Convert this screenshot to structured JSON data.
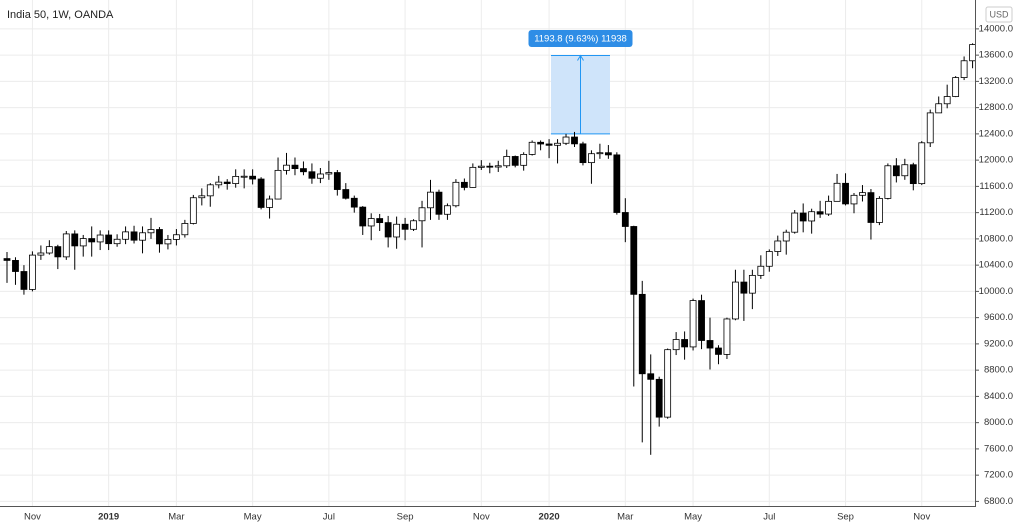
{
  "chart_data": {
    "type": "candlestick",
    "title": "India 50, 1W, OANDA",
    "currency": "USD",
    "categories": [
      null,
      null,
      null,
      "Nov",
      null,
      null,
      null,
      null,
      null,
      null,
      null,
      null,
      "2019",
      null,
      null,
      null,
      null,
      null,
      null,
      null,
      "Mar",
      null,
      null,
      null,
      null,
      null,
      null,
      null,
      null,
      "May",
      null,
      null,
      null,
      null,
      null,
      null,
      null,
      null,
      "Jul",
      null,
      null,
      null,
      null,
      null,
      null,
      null,
      null,
      "Sep",
      null,
      null,
      null,
      null,
      null,
      null,
      null,
      null,
      "Nov",
      null,
      null,
      null,
      null,
      null,
      null,
      null,
      "2020",
      null,
      null,
      null,
      null,
      null,
      null,
      null,
      null,
      "Mar",
      null,
      null,
      null,
      null,
      null,
      null,
      null,
      "May",
      null,
      null,
      null,
      null,
      null,
      null,
      null,
      null,
      "Jul",
      null,
      null,
      null,
      null,
      null,
      null,
      null,
      null,
      "Sep",
      null,
      null,
      null,
      null,
      null,
      null,
      null,
      null,
      "Nov",
      null,
      null,
      null,
      null,
      null,
      null
    ],
    "open": [
      10500,
      10472,
      10303,
      10030,
      10553,
      10585,
      10682,
      10526,
      10876,
      10693,
      10805,
      10754,
      10859,
      10727,
      10794,
      10907,
      10780,
      10893,
      10943,
      10724,
      10792,
      10863,
      11035,
      11427,
      11456,
      11624,
      11665,
      11643,
      11752,
      11755,
      11712,
      11279,
      11407,
      11844,
      11923,
      11871,
      11823,
      11724,
      11789,
      11811,
      11552,
      11419,
      11284,
      10997,
      11110,
      11048,
      10829,
      11023,
      10946,
      11076,
      11274,
      11512,
      11175,
      11305,
      11662,
      11584,
      11890,
      11908,
      11895,
      11914,
      12056,
      11921,
      12087,
      12272,
      12246,
      12226,
      12257,
      12352,
      12248,
      11962,
      12098,
      12113,
      12080,
      11202,
      10989,
      9955,
      8745,
      8660,
      8084,
      9112,
      9267,
      9154,
      9860,
      9252,
      9137,
      9040,
      9580,
      10142,
      9973,
      10244,
      10383,
      10608,
      10768,
      10902,
      11194,
      11073,
      11214,
      11178,
      11372,
      11647,
      11333,
      11464,
      11505,
      11050,
      11417,
      11914,
      11762,
      11930,
      11642,
      12264,
      12720,
      12859,
      12969,
      13258,
      13514
    ],
    "high": [
      10600,
      10520,
      10400,
      10610,
      10700,
      10780,
      10710,
      10920,
      10930,
      10860,
      10990,
      10930,
      10930,
      10870,
      10990,
      11000,
      10990,
      11120,
      10980,
      10860,
      10950,
      11090,
      11470,
      11570,
      11650,
      11760,
      11710,
      11860,
      11860,
      11860,
      11740,
      11460,
      12040,
      12110,
      12040,
      11980,
      11950,
      11880,
      11990,
      11850,
      11650,
      11460,
      11300,
      11190,
      11180,
      11150,
      11140,
      11120,
      11100,
      11380,
      11700,
      11550,
      11340,
      11710,
      11720,
      11950,
      12000,
      11960,
      11990,
      12160,
      12070,
      12120,
      12300,
      12300,
      12320,
      12320,
      12400,
      12430,
      12280,
      12150,
      12250,
      12230,
      12120,
      11420,
      11000,
      10160,
      9040,
      8700,
      9130,
      9380,
      9390,
      9890,
      9950,
      9600,
      9180,
      9600,
      10330,
      10330,
      10330,
      10550,
      10640,
      10850,
      10940,
      11240,
      11340,
      11260,
      11380,
      11460,
      11790,
      11800,
      11500,
      11620,
      11560,
      11450,
      11950,
      12030,
      12020,
      11960,
      12290,
      12770,
      12970,
      13150,
      13280,
      13580,
      13780
    ],
    "low": [
      10130,
      10100,
      9950,
      10000,
      10480,
      10560,
      10340,
      10480,
      10330,
      10530,
      10530,
      10630,
      10630,
      10680,
      10720,
      10730,
      10580,
      10800,
      10590,
      10640,
      10700,
      10820,
      11020,
      11310,
      11290,
      11570,
      11550,
      11580,
      11570,
      11630,
      11250,
      11110,
      11400,
      11780,
      11770,
      11770,
      11640,
      11650,
      11700,
      11460,
      11400,
      11200,
      10860,
      10780,
      10920,
      10670,
      10650,
      10780,
      10920,
      10670,
      11090,
      11090,
      11090,
      11280,
      11540,
      11580,
      11850,
      11800,
      11820,
      11880,
      11890,
      11840,
      12070,
      12150,
      12030,
      11950,
      12230,
      12200,
      11920,
      11640,
      12020,
      12020,
      11170,
      10750,
      8550,
      7700,
      7510,
      7940,
      8060,
      9030,
      8960,
      9100,
      9120,
      8810,
      8890,
      8970,
      9560,
      9550,
      9730,
      10190,
      10300,
      10540,
      10560,
      10880,
      10900,
      10880,
      11120,
      11150,
      11370,
      11310,
      11190,
      11370,
      10790,
      11010,
      11400,
      11660,
      11700,
      11540,
      11620,
      12200,
      12730,
      12790,
      12960,
      13220,
      13400
    ],
    "close": [
      10472,
      10303,
      10030,
      10553,
      10585,
      10682,
      10526,
      10876,
      10693,
      10805,
      10754,
      10859,
      10727,
      10794,
      10907,
      10780,
      10893,
      10943,
      10724,
      10792,
      10863,
      11035,
      11427,
      11456,
      11624,
      11665,
      11643,
      11752,
      11755,
      11712,
      11279,
      11407,
      11844,
      11923,
      11871,
      11823,
      11724,
      11789,
      11811,
      11552,
      11419,
      11284,
      10997,
      11110,
      11048,
      10829,
      11023,
      10946,
      11076,
      11274,
      11512,
      11175,
      11305,
      11662,
      11584,
      11890,
      11908,
      11895,
      11914,
      12056,
      11921,
      12087,
      12272,
      12246,
      12226,
      12257,
      12352,
      12248,
      11962,
      12098,
      12113,
      12080,
      11202,
      10989,
      9955,
      8745,
      8660,
      8084,
      9112,
      9267,
      9154,
      9860,
      9252,
      9137,
      9040,
      9580,
      10142,
      9973,
      10244,
      10383,
      10608,
      10768,
      10902,
      11194,
      11073,
      11214,
      11178,
      11372,
      11647,
      11333,
      11464,
      11505,
      11050,
      11417,
      11914,
      11762,
      11930,
      11642,
      12264,
      12720,
      12859,
      12969,
      13258,
      13514,
      13761
    ],
    "up_color": "#ffffff",
    "down_color": "#000000",
    "ylim": [
      6730,
      14440
    ],
    "yticks": [
      {
        "value": 6800,
        "label": "6800.0"
      },
      {
        "value": 7200,
        "label": "7200.0"
      },
      {
        "value": 7600,
        "label": "7600.0"
      },
      {
        "value": 8000,
        "label": "8000.0"
      },
      {
        "value": 8400,
        "label": "8400.0"
      },
      {
        "value": 8800,
        "label": "8800.0"
      },
      {
        "value": 9200,
        "label": "9200.0"
      },
      {
        "value": 9600,
        "label": "9600.0"
      },
      {
        "value": 10000,
        "label": "10000.0"
      },
      {
        "value": 10400,
        "label": "10400.0"
      },
      {
        "value": 10800,
        "label": "10800.0"
      },
      {
        "value": 11200,
        "label": "11200.0"
      },
      {
        "value": 11600,
        "label": "11600.0"
      },
      {
        "value": 12000,
        "label": "12000.0"
      },
      {
        "value": 12400,
        "label": "12400.0"
      },
      {
        "value": 12800,
        "label": "12800.0"
      },
      {
        "value": 13200,
        "label": "13200.0"
      },
      {
        "value": 13600,
        "label": "13600.0"
      },
      {
        "value": 14000,
        "label": "14000.0"
      }
    ],
    "grid": true,
    "measure": {
      "label": "1193.8 (9.63%) 11938",
      "from": 12400,
      "to": 13593.8
    }
  }
}
